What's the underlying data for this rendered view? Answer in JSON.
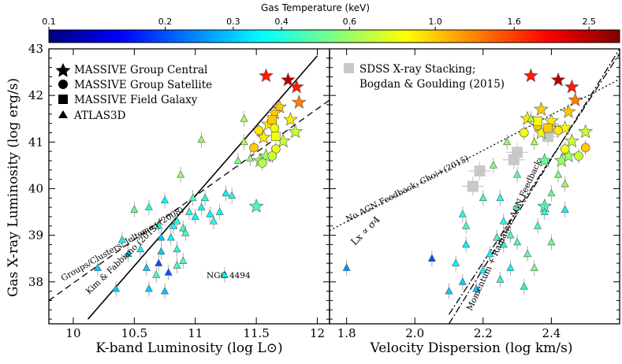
{
  "colorbar": {
    "title": "Gas Temperature (keV)",
    "ticks": [
      "0.1",
      "0.2",
      "0.3",
      "0.4",
      "0.6",
      "1.0",
      "1.6",
      "2.5"
    ]
  },
  "chart_data": [
    {
      "type": "scatter",
      "panel": "left",
      "xlabel": "K-band Luminosity (log L⊙)",
      "ylabel": "Gas X-ray Luminosity (log erg/s)",
      "xlim": [
        9.8,
        12.1
      ],
      "ylim": [
        37.1,
        43.0
      ],
      "xticks": [
        "10",
        "10.5",
        "11",
        "11.5",
        "12"
      ],
      "yticks": [
        "38",
        "39",
        "40",
        "41",
        "42",
        "43"
      ],
      "legend": {
        "position": "top-left",
        "entries": [
          "MASSIVE Group Central",
          "MASSIVE Group Satellite",
          "MASSIVE Field Galaxy",
          "ATLAS3D"
        ]
      },
      "lines": [
        {
          "label": "Kim & Fabbiano (2015)",
          "style": "solid",
          "x": [
            10.12,
            12.0
          ],
          "y": [
            37.2,
            42.85
          ]
        },
        {
          "label": "Groups/Clusters; Jeltema+(2008)",
          "style": "dashed",
          "x": [
            9.8,
            12.1
          ],
          "y": [
            37.6,
            41.9
          ]
        }
      ],
      "annotations": [
        "NGC 4494"
      ],
      "series": [
        {
          "name": "MASSIVE Group Central",
          "marker": "star",
          "points": [
            [
              11.76,
              42.33,
              2.5
            ],
            [
              11.58,
              42.42,
              1.8
            ],
            [
              11.83,
              42.18,
              1.8
            ],
            [
              11.85,
              41.85,
              1.3
            ],
            [
              11.69,
              41.75,
              1.0
            ],
            [
              11.65,
              41.62,
              1.0
            ],
            [
              11.78,
              41.48,
              0.9
            ],
            [
              11.6,
              41.38,
              0.9
            ],
            [
              11.56,
              41.1,
              0.9
            ],
            [
              11.82,
              41.22,
              0.7
            ],
            [
              11.72,
              41.02,
              0.7
            ],
            [
              11.53,
              40.6,
              0.6
            ],
            [
              11.58,
              40.7,
              0.6
            ],
            [
              11.5,
              39.62,
              0.45
            ]
          ]
        },
        {
          "name": "MASSIVE Group Satellite",
          "marker": "circle",
          "points": [
            [
              11.48,
              40.88,
              1.0
            ],
            [
              11.52,
              41.25,
              0.9
            ],
            [
              11.66,
              40.85,
              0.8
            ],
            [
              11.63,
              40.7,
              0.7
            ],
            [
              11.55,
              40.55,
              0.65
            ],
            [
              11.65,
              41.3,
              0.8
            ]
          ]
        },
        {
          "name": "MASSIVE Field Galaxy",
          "marker": "square",
          "points": [
            [
              11.63,
              41.48,
              1.0
            ],
            [
              11.66,
              41.12,
              0.8
            ]
          ]
        },
        {
          "name": "ATLAS3D",
          "marker": "triangle",
          "points": [
            [
              10.2,
              38.3,
              0.3
            ],
            [
              10.35,
              37.85,
              0.3
            ],
            [
              10.45,
              38.6,
              0.3
            ],
            [
              10.55,
              38.7,
              0.35
            ],
            [
              10.6,
              38.3,
              0.3
            ],
            [
              10.62,
              37.85,
              0.3
            ],
            [
              10.7,
              38.4,
              0.2
            ],
            [
              10.72,
              38.65,
              0.3
            ],
            [
              10.75,
              37.8,
              0.3
            ],
            [
              10.78,
              38.2,
              0.2
            ],
            [
              10.72,
              38.95,
              0.3
            ],
            [
              10.8,
              38.95,
              0.35
            ],
            [
              10.82,
              39.2,
              0.35
            ],
            [
              10.85,
              39.3,
              0.4
            ],
            [
              10.9,
              39.15,
              0.45
            ],
            [
              10.92,
              39.05,
              0.45
            ],
            [
              10.95,
              39.5,
              0.4
            ],
            [
              11.0,
              39.4,
              0.35
            ],
            [
              11.05,
              39.6,
              0.35
            ],
            [
              11.08,
              39.8,
              0.4
            ],
            [
              11.12,
              39.45,
              0.35
            ],
            [
              11.15,
              39.3,
              0.4
            ],
            [
              11.2,
              39.5,
              0.35
            ],
            [
              11.25,
              39.9,
              0.35
            ],
            [
              11.3,
              39.85,
              0.4
            ],
            [
              11.35,
              40.6,
              0.55
            ],
            [
              11.4,
              41.0,
              0.65
            ],
            [
              11.05,
              41.05,
              0.6
            ],
            [
              10.88,
              40.3,
              0.6
            ],
            [
              11.45,
              40.65,
              0.55
            ],
            [
              10.98,
              39.8,
              0.45
            ],
            [
              10.9,
              38.45,
              0.45
            ],
            [
              10.7,
              39.2,
              0.4
            ],
            [
              10.85,
              38.7,
              0.4
            ],
            [
              10.5,
              39.55,
              0.5
            ],
            [
              10.4,
              38.9,
              0.35
            ],
            [
              11.24,
              38.15,
              0.35
            ],
            [
              10.85,
              38.35,
              0.45
            ],
            [
              10.68,
              38.15,
              0.45
            ],
            [
              10.62,
              39.6,
              0.4
            ],
            [
              11.4,
              41.5,
              0.65
            ],
            [
              10.75,
              39.75,
              0.35
            ]
          ]
        }
      ]
    },
    {
      "type": "scatter",
      "panel": "right",
      "xlabel": "Velocity Dispersion (log km/s)",
      "xlim": [
        1.75,
        2.6
      ],
      "ylim": [
        37.1,
        43.0
      ],
      "xticks": [
        "1.8",
        "2.0",
        "2.2",
        "2.4"
      ],
      "legend": {
        "position": "top-left",
        "entries": [
          "SDSS X-ray Stacking;",
          "Bogdan & Goulding (2015)"
        ]
      },
      "lines": [
        {
          "label": "No AGN Feedback; Choi+(2015)",
          "style": "dotted",
          "x": [
            1.75,
            2.6
          ],
          "y": [
            39.1,
            42.35
          ]
        },
        {
          "label": "Momentum + Radiative AGN Feedback",
          "style": "dashdot",
          "x": [
            2.1,
            2.6
          ],
          "y": [
            37.1,
            43.0
          ]
        },
        {
          "label": "Lx ∝ σ4",
          "style": "dashdot",
          "x": [
            2.1,
            2.6
          ],
          "y": [
            37.3,
            42.9
          ]
        }
      ],
      "stacking": [
        [
          2.17,
          40.05
        ],
        [
          2.19,
          40.38
        ],
        [
          2.29,
          40.62
        ],
        [
          2.3,
          40.78
        ],
        [
          2.39,
          41.12
        ],
        [
          2.4,
          41.3
        ]
      ],
      "series": [
        {
          "name": "MASSIVE Group Central",
          "marker": "star",
          "points": [
            [
              2.42,
              42.33,
              2.5
            ],
            [
              2.34,
              42.42,
              1.8
            ],
            [
              2.46,
              42.18,
              1.8
            ],
            [
              2.47,
              41.9,
              1.3
            ],
            [
              2.37,
              41.7,
              1.0
            ],
            [
              2.45,
              41.65,
              1.0
            ],
            [
              2.4,
              41.45,
              0.9
            ],
            [
              2.33,
              41.5,
              0.9
            ],
            [
              2.37,
              41.2,
              0.8
            ],
            [
              2.44,
              41.3,
              0.8
            ],
            [
              2.5,
              41.22,
              0.7
            ],
            [
              2.46,
              41.02,
              0.7
            ],
            [
              2.43,
              40.6,
              0.6
            ],
            [
              2.45,
              40.7,
              0.6
            ],
            [
              2.38,
              40.6,
              0.5
            ],
            [
              2.38,
              39.62,
              0.45
            ]
          ]
        },
        {
          "name": "MASSIVE Group Satellite",
          "marker": "circle",
          "points": [
            [
              2.36,
              41.35,
              1.0
            ],
            [
              2.42,
              41.25,
              0.9
            ],
            [
              2.44,
              40.85,
              0.8
            ],
            [
              2.48,
              40.7,
              0.7
            ],
            [
              2.5,
              40.88,
              1.0
            ],
            [
              2.32,
              41.2,
              0.8
            ]
          ]
        },
        {
          "name": "MASSIVE Field Galaxy",
          "marker": "square",
          "points": [
            [
              2.39,
              41.3,
              1.0
            ],
            [
              2.36,
              41.45,
              0.8
            ]
          ]
        },
        {
          "name": "ATLAS3D",
          "marker": "triangle",
          "points": [
            [
              1.8,
              38.3,
              0.25
            ],
            [
              2.05,
              38.5,
              0.2
            ],
            [
              2.1,
              37.8,
              0.3
            ],
            [
              2.12,
              38.4,
              0.35
            ],
            [
              2.14,
              38.0,
              0.3
            ],
            [
              2.15,
              38.8,
              0.35
            ],
            [
              2.18,
              37.85,
              0.3
            ],
            [
              2.2,
              38.25,
              0.35
            ],
            [
              2.22,
              38.6,
              0.35
            ],
            [
              2.24,
              38.95,
              0.45
            ],
            [
              2.26,
              39.3,
              0.4
            ],
            [
              2.28,
              39.0,
              0.45
            ],
            [
              2.3,
              39.6,
              0.45
            ],
            [
              2.33,
              38.6,
              0.5
            ],
            [
              2.35,
              38.3,
              0.55
            ],
            [
              2.32,
              37.9,
              0.4
            ],
            [
              2.36,
              39.2,
              0.45
            ],
            [
              2.38,
              39.5,
              0.4
            ],
            [
              2.4,
              39.9,
              0.5
            ],
            [
              2.42,
              40.3,
              0.55
            ],
            [
              2.25,
              39.8,
              0.4
            ],
            [
              2.3,
              40.3,
              0.5
            ],
            [
              2.2,
              39.8,
              0.45
            ],
            [
              2.15,
              39.2,
              0.45
            ],
            [
              2.28,
              38.3,
              0.35
            ],
            [
              2.4,
              38.85,
              0.5
            ],
            [
              2.44,
              39.55,
              0.35
            ],
            [
              2.44,
              40.1,
              0.6
            ],
            [
              2.35,
              41.0,
              0.65
            ],
            [
              2.27,
              41.0,
              0.6
            ],
            [
              2.14,
              39.45,
              0.4
            ],
            [
              2.25,
              38.05,
              0.4
            ],
            [
              2.23,
              40.5,
              0.55
            ],
            [
              2.34,
              41.5,
              0.65
            ],
            [
              2.3,
              38.85,
              0.45
            ],
            [
              2.26,
              38.8,
              0.4
            ]
          ]
        }
      ]
    }
  ]
}
